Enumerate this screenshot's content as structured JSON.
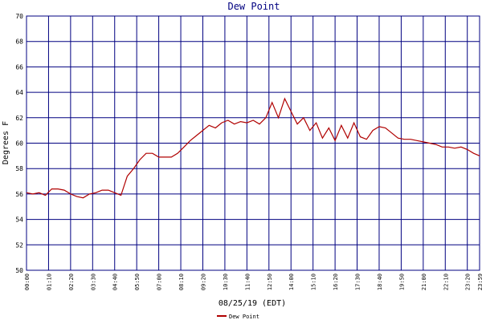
{
  "chart_data": {
    "type": "line",
    "title": "Dew Point",
    "x_label": "08/25/19 (EDT)",
    "y_label": "Degrees F",
    "x": [
      0,
      20,
      40,
      60,
      80,
      100,
      120,
      140,
      160,
      180,
      200,
      220,
      240,
      260,
      280,
      300,
      320,
      340,
      360,
      380,
      400,
      420,
      440,
      460,
      480,
      500,
      520,
      540,
      560,
      580,
      600,
      620,
      640,
      660,
      680,
      700,
      720,
      740,
      760,
      780,
      800,
      820,
      840,
      860,
      880,
      900,
      920,
      940,
      960,
      980,
      1000,
      1020,
      1040,
      1060,
      1080,
      1100,
      1120,
      1140,
      1160,
      1180,
      1200,
      1220,
      1240,
      1260,
      1280,
      1300,
      1320,
      1340,
      1360,
      1380,
      1400,
      1420,
      1439
    ],
    "series": [
      {
        "name": "Dew Point",
        "color": "#b00000",
        "values": [
          56.1,
          56.0,
          56.1,
          55.9,
          56.4,
          56.4,
          56.3,
          56.0,
          55.8,
          55.7,
          56.0,
          56.1,
          56.3,
          56.3,
          56.1,
          55.9,
          57.4,
          58.0,
          58.7,
          59.2,
          59.2,
          58.9,
          58.9,
          58.9,
          59.2,
          59.7,
          60.2,
          60.6,
          61.0,
          61.4,
          61.2,
          61.6,
          61.8,
          61.5,
          61.7,
          61.6,
          61.8,
          61.5,
          62.0,
          63.2,
          62.0,
          63.5,
          62.5,
          61.5,
          62.0,
          61.0,
          61.6,
          60.4,
          61.2,
          60.2,
          61.4,
          60.4,
          61.6,
          60.5,
          60.3,
          61.0,
          61.3,
          61.2,
          60.8,
          60.4,
          60.3,
          60.3,
          60.2,
          60.1,
          60.0,
          59.9,
          59.7,
          59.7,
          59.6,
          59.7,
          59.5,
          59.2,
          59.0
        ]
      }
    ],
    "xlim": [
      0,
      1439
    ],
    "xticks": [
      {
        "value": 0,
        "label": "00:00"
      },
      {
        "value": 70,
        "label": "01:10"
      },
      {
        "value": 140,
        "label": "02:20"
      },
      {
        "value": 210,
        "label": "03:30"
      },
      {
        "value": 280,
        "label": "04:40"
      },
      {
        "value": 350,
        "label": "05:50"
      },
      {
        "value": 420,
        "label": "07:00"
      },
      {
        "value": 490,
        "label": "08:10"
      },
      {
        "value": 560,
        "label": "09:20"
      },
      {
        "value": 630,
        "label": "10:30"
      },
      {
        "value": 700,
        "label": "11:40"
      },
      {
        "value": 770,
        "label": "12:50"
      },
      {
        "value": 840,
        "label": "14:00"
      },
      {
        "value": 910,
        "label": "15:10"
      },
      {
        "value": 980,
        "label": "16:20"
      },
      {
        "value": 1050,
        "label": "17:30"
      },
      {
        "value": 1120,
        "label": "18:40"
      },
      {
        "value": 1190,
        "label": "19:50"
      },
      {
        "value": 1260,
        "label": "21:00"
      },
      {
        "value": 1330,
        "label": "22:10"
      },
      {
        "value": 1400,
        "label": "23:20"
      },
      {
        "value": 1439,
        "label": "23:59"
      }
    ],
    "ylim": [
      50,
      70
    ],
    "yticks": [
      50,
      52,
      54,
      56,
      58,
      60,
      62,
      64,
      66,
      68,
      70
    ],
    "grid": true
  }
}
